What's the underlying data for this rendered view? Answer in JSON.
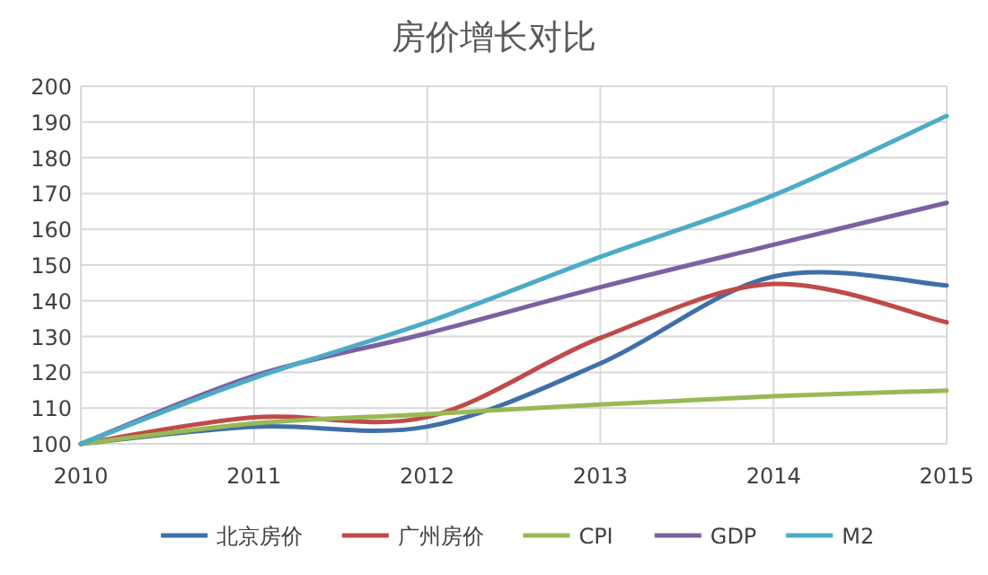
{
  "chart_data": {
    "type": "line",
    "title": "房价增长对比",
    "x": [
      2010,
      2011,
      2012,
      2013,
      2014,
      2015
    ],
    "series": [
      {
        "name": "北京房价",
        "color": "#3f6fa8",
        "values": [
          100,
          104.8,
          104.8,
          122.5,
          146.8,
          144.3
        ]
      },
      {
        "name": "广州房价",
        "color": "#be4b48",
        "values": [
          100,
          107.4,
          107.5,
          129.6,
          144.7,
          134
        ]
      },
      {
        "name": "CPI",
        "color": "#98b954",
        "values": [
          100,
          105.7,
          108.3,
          111,
          113.3,
          114.9
        ]
      },
      {
        "name": "GDP",
        "color": "#7d60a0",
        "values": [
          100,
          119,
          130.9,
          143.8,
          155.7,
          167.4
        ]
      },
      {
        "name": "M2",
        "color": "#4bacc6",
        "values": [
          100,
          118.4,
          134,
          152.3,
          169.5,
          191.7
        ]
      }
    ],
    "xlim": [
      2010,
      2015
    ],
    "xticks": [
      2010,
      2011,
      2012,
      2013,
      2014,
      2015
    ],
    "ylim": [
      100,
      200
    ],
    "yticks": [
      100,
      110,
      120,
      130,
      140,
      150,
      160,
      170,
      180,
      190,
      200
    ],
    "grid": true,
    "legend": "bottom",
    "marker": "none",
    "line_style": "solid"
  }
}
